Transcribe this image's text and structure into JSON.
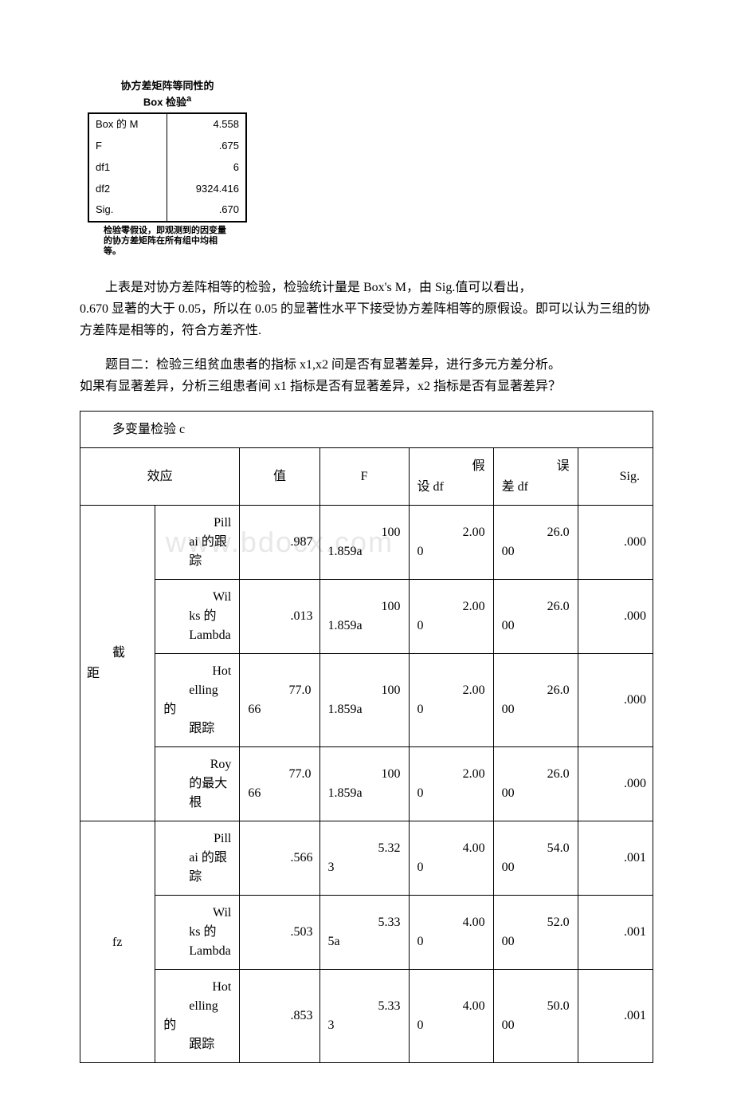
{
  "box_test": {
    "title_line1": "协方差矩阵等同性的",
    "title_line2": "Box 检验",
    "title_super": "a",
    "rows": [
      {
        "label": "Box 的 M",
        "value": "4.558"
      },
      {
        "label": "F",
        "value": ".675"
      },
      {
        "label": "df1",
        "value": "6"
      },
      {
        "label": "df2",
        "value": "9324.416"
      },
      {
        "label": "Sig.",
        "value": ".670"
      }
    ],
    "footnote": "检验零假设，即观测到的因变量的协方差矩阵在所有组中均相等。"
  },
  "paragraphs": {
    "p1a": "上表是对协方差阵相等的检验，检验统计量是 Box's M，由 Sig.值可以看出，",
    "p1b": "0.670 显著的大于 0.05，所以在 0.05 的显著性水平下接受协方差阵相等的原假设。即可以认为三组的协方差阵是相等的，符合方差齐性.",
    "p2a": "题目二：检验三组贫血患者的指标 x1,x2 间是否有显著差异，进行多元方差分析。",
    "p2b": "如果有显著差异，分析三组患者间 x1 指标是否有显著差异，x2 指标是否有显著差异？"
  },
  "main_table": {
    "title": "多变量检验 c",
    "headers": {
      "effect": "效应",
      "value": "值",
      "f": "F",
      "hdf_l1": "假",
      "hdf_l2": "设 df",
      "edf_l1": "误",
      "edf_l2": "差 df",
      "sig": "Sig."
    },
    "group1": {
      "label": "截距",
      "rows": [
        {
          "name_l1": "Pill",
          "name_l2": "ai 的跟",
          "name_l3": "踪",
          "val": ".987",
          "f_top": "100",
          "f_bot": "1.859a",
          "hdf_top": "2.00",
          "hdf_bot": "0",
          "edf_top": "26.0",
          "edf_bot": "00",
          "sig": ".000"
        },
        {
          "name_l1": "Wil",
          "name_l2": "ks 的",
          "name_l3": "Lambda",
          "val": ".013",
          "f_top": "100",
          "f_bot": "1.859a",
          "hdf_top": "2.00",
          "hdf_bot": "0",
          "edf_top": "26.0",
          "edf_bot": "00",
          "sig": ".000"
        },
        {
          "name_l1": "Hot",
          "name_l2": "elling 的",
          "name_l3": "跟踪",
          "val_top": "77.0",
          "val_bot": "66",
          "f_top": "100",
          "f_bot": "1.859a",
          "hdf_top": "2.00",
          "hdf_bot": "0",
          "edf_top": "26.0",
          "edf_bot": "00",
          "sig": ".000"
        },
        {
          "name_l1": "Roy",
          "name_l2": "的最大",
          "name_l3": "根",
          "val_top": "77.0",
          "val_bot": "66",
          "f_top": "100",
          "f_bot": "1.859a",
          "hdf_top": "2.00",
          "hdf_bot": "0",
          "edf_top": "26.0",
          "edf_bot": "00",
          "sig": ".000"
        }
      ]
    },
    "group2": {
      "label": "fz",
      "rows": [
        {
          "name_l1": "Pill",
          "name_l2": "ai 的跟",
          "name_l3": "踪",
          "val": ".566",
          "f_top": "5.32",
          "f_bot": "3",
          "hdf_top": "4.00",
          "hdf_bot": "0",
          "edf_top": "54.0",
          "edf_bot": "00",
          "sig": ".001"
        },
        {
          "name_l1": "Wil",
          "name_l2": "ks 的",
          "name_l3": "Lambda",
          "val": ".503",
          "f_top": "5.33",
          "f_bot": "5a",
          "hdf_top": "4.00",
          "hdf_bot": "0",
          "edf_top": "52.0",
          "edf_bot": "00",
          "sig": ".001"
        },
        {
          "name_l1": "Hot",
          "name_l2": "elling 的",
          "name_l3": "跟踪",
          "val": ".853",
          "f_top": "5.33",
          "f_bot": "3",
          "hdf_top": "4.00",
          "hdf_bot": "0",
          "edf_top": "50.0",
          "edf_bot": "00",
          "sig": ".001"
        }
      ]
    }
  },
  "watermark": "www.bdocx.com"
}
